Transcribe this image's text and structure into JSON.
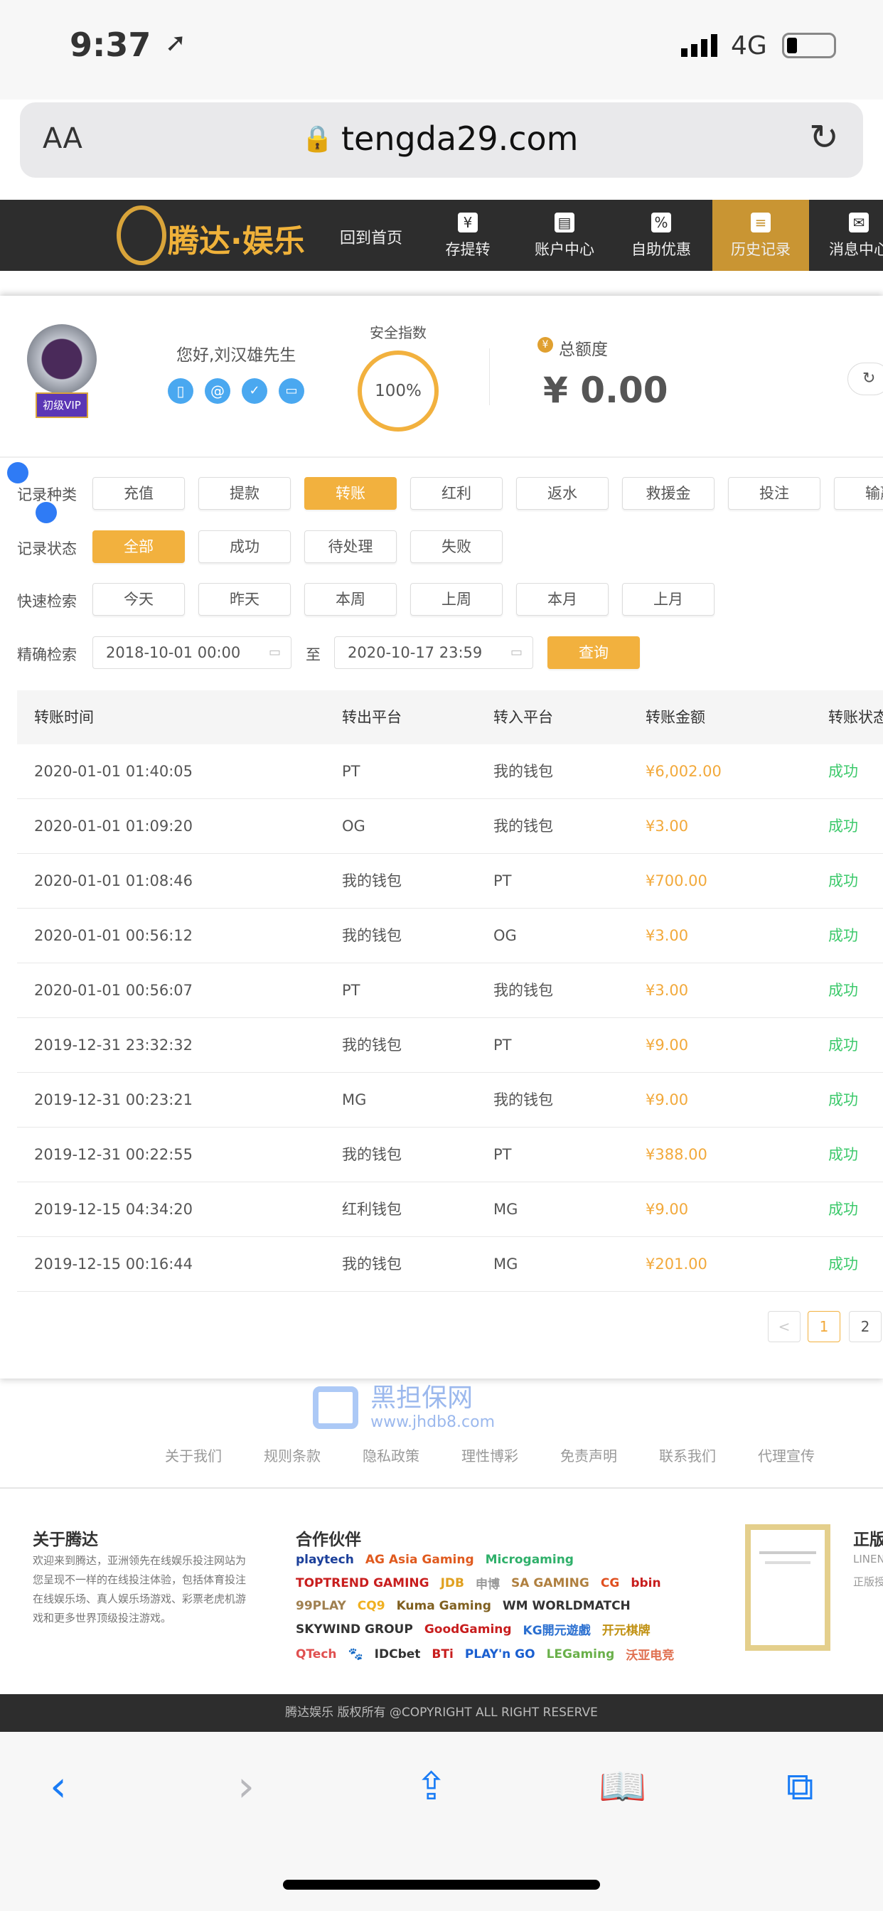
{
  "status": {
    "time": "9:37",
    "network": "4G"
  },
  "browser": {
    "text_size": "AA",
    "url": "tengda29.com"
  },
  "site": {
    "logo_text": "腾达·娱乐",
    "home": "回到首页",
    "nav": [
      {
        "label": "存提转",
        "icon": "¥"
      },
      {
        "label": "账户中心",
        "icon": "▤"
      },
      {
        "label": "自助优惠",
        "icon": "%"
      },
      {
        "label": "历史记录",
        "icon": "≡",
        "active": true
      },
      {
        "label": "消息中心",
        "icon": "✉"
      }
    ]
  },
  "profile": {
    "vip": "初级VIP",
    "greeting": "您好,刘汉雄先生",
    "security_label": "安全指数",
    "security_value": "100%",
    "balance_label": "总额度",
    "balance": "¥ 0.00",
    "accent": "#f2b13e"
  },
  "filters": {
    "type_label": "记录种类",
    "types": [
      "充值",
      "提款",
      "转账",
      "红利",
      "返水",
      "救援金",
      "投注",
      "输赢"
    ],
    "type_selected": "转账",
    "status_label": "记录状态",
    "statuses": [
      "全部",
      "成功",
      "待处理",
      "失败"
    ],
    "status_selected": "全部",
    "quick_label": "快速检索",
    "quick": [
      "今天",
      "昨天",
      "本周",
      "上周",
      "本月",
      "上月"
    ],
    "exact_label": "精确检索",
    "from": "2018-10-01 00:00",
    "to_label": "至",
    "to": "2020-10-17 23:59",
    "query": "查询"
  },
  "table": {
    "headers": [
      "转账时间",
      "转出平台",
      "转入平台",
      "转账金额",
      "转账状态"
    ],
    "rows": [
      [
        "2020-01-01 01:40:05",
        "PT",
        "我的钱包",
        "¥6,002.00",
        "成功"
      ],
      [
        "2020-01-01 01:09:20",
        "OG",
        "我的钱包",
        "¥3.00",
        "成功"
      ],
      [
        "2020-01-01 01:08:46",
        "我的钱包",
        "PT",
        "¥700.00",
        "成功"
      ],
      [
        "2020-01-01 00:56:12",
        "我的钱包",
        "OG",
        "¥3.00",
        "成功"
      ],
      [
        "2020-01-01 00:56:07",
        "PT",
        "我的钱包",
        "¥3.00",
        "成功"
      ],
      [
        "2019-12-31 23:32:32",
        "我的钱包",
        "PT",
        "¥9.00",
        "成功"
      ],
      [
        "2019-12-31 00:23:21",
        "MG",
        "我的钱包",
        "¥9.00",
        "成功"
      ],
      [
        "2019-12-31 00:22:55",
        "我的钱包",
        "PT",
        "¥388.00",
        "成功"
      ],
      [
        "2019-12-15 04:34:20",
        "红利钱包",
        "MG",
        "¥9.00",
        "成功"
      ],
      [
        "2019-12-15 00:16:44",
        "我的钱包",
        "MG",
        "¥201.00",
        "成功"
      ]
    ]
  },
  "pagination": {
    "prev": "<",
    "pages": [
      "1",
      "2"
    ],
    "current": "1"
  },
  "watermark": {
    "text": "黑担保网",
    "url": "www.jhdb8.com"
  },
  "footer": {
    "links": [
      "关于我们",
      "规则条款",
      "隐私政策",
      "理性博彩",
      "免责声明",
      "联系我们",
      "代理宣传"
    ],
    "about_title": "关于腾达",
    "about_text": "欢迎来到腾达，亚洲领先在线娱乐投注网站为您呈现不一样的在线投注体验，包括体育投注在线娱乐场、真人娱乐场游戏、彩票老虎机游戏和更多世界顶级投注游戏。",
    "partners_title": "合作伙伴",
    "partners": [
      "playtech",
      "AG Asia Gaming",
      "Microgaming",
      "TOPTREND GAMING",
      "JDB",
      "申博",
      "SA GAMING",
      "CG",
      "bbin",
      "99PLAY",
      "CQ9",
      "Kuma Gaming",
      "WM WORLDMATCH",
      "SKYWIND GROUP",
      "GoodGaming",
      "KG開元遊戲",
      "开元棋牌",
      "QTech",
      "🐾",
      "IDCbet",
      "BTi",
      "PLAY'n GO",
      "LEGaming",
      "沃亚电竞"
    ],
    "license_title": "正版",
    "license_sub": "LINENO",
    "license_text": "正版授",
    "copyright": "腾达娱乐 版权所有 @COPYRIGHT ALL RIGHT RESERVE"
  }
}
